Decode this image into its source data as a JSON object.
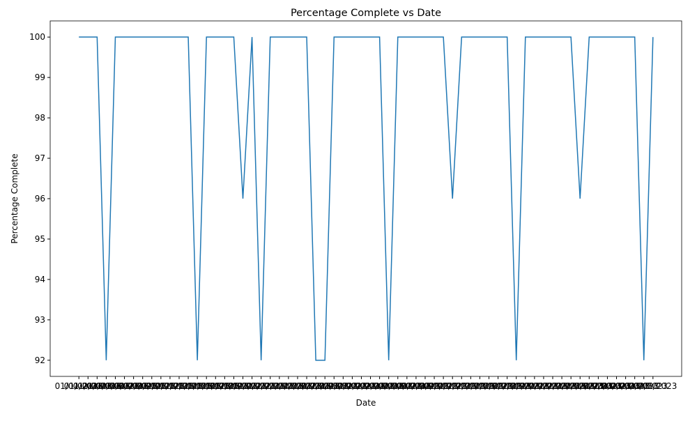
{
  "chart_data": {
    "type": "line",
    "title": "Percentage Complete vs Date",
    "x_label": "Date",
    "y_label": "Percentage Complete",
    "categories": [
      "01/01/2023",
      "01/02/2023",
      "01/03/2023",
      "01/04/2023",
      "01/05/2023",
      "01/06/2023",
      "01/07/2023",
      "01/08/2023",
      "01/09/2023",
      "01/10/2023",
      "01/11/2023",
      "01/12/2023",
      "01/13/2023",
      "01/14/2023",
      "01/15/2023",
      "01/16/2023",
      "01/17/2023",
      "01/18/2023",
      "01/19/2023",
      "01/20/2023",
      "01/21/2023",
      "01/22/2023",
      "01/23/2023",
      "01/24/2023",
      "01/25/2023",
      "01/26/2023",
      "01/27/2023",
      "01/28/2023",
      "01/29/2023",
      "01/30/2023",
      "01/31/2023",
      "02/01/2023",
      "02/02/2023",
      "02/03/2023",
      "02/04/2023",
      "02/05/2023",
      "02/06/2023",
      "02/07/2023",
      "02/08/2023",
      "02/09/2023",
      "02/10/2023",
      "02/11/2023",
      "02/12/2023",
      "02/13/2023",
      "02/14/2023",
      "02/15/2023",
      "02/16/2023",
      "02/17/2023",
      "02/18/2023",
      "02/19/2023",
      "02/20/2023",
      "02/21/2023",
      "02/22/2023",
      "02/23/2023",
      "02/24/2023",
      "02/25/2023",
      "02/26/2023",
      "02/27/2023",
      "02/28/2023",
      "03/01/2023",
      "03/02/2023",
      "03/03/2023",
      "03/04/2023",
      "03/05/2023"
    ],
    "values": [
      100,
      100,
      100,
      92,
      100,
      100,
      100,
      100,
      100,
      100,
      100,
      100,
      100,
      92,
      100,
      100,
      100,
      100,
      96,
      100,
      92,
      100,
      100,
      100,
      100,
      100,
      92,
      92,
      100,
      100,
      100,
      100,
      100,
      100,
      92,
      100,
      100,
      100,
      100,
      100,
      100,
      96,
      100,
      100,
      100,
      100,
      100,
      100,
      92,
      100,
      100,
      100,
      100,
      100,
      100,
      96,
      100,
      100,
      100,
      100,
      100,
      100,
      92,
      100
    ],
    "color": "#1f77b4",
    "ylim": [
      91.6,
      100.4
    ],
    "yticks": [
      92,
      93,
      94,
      95,
      96,
      97,
      98,
      99,
      100
    ]
  }
}
